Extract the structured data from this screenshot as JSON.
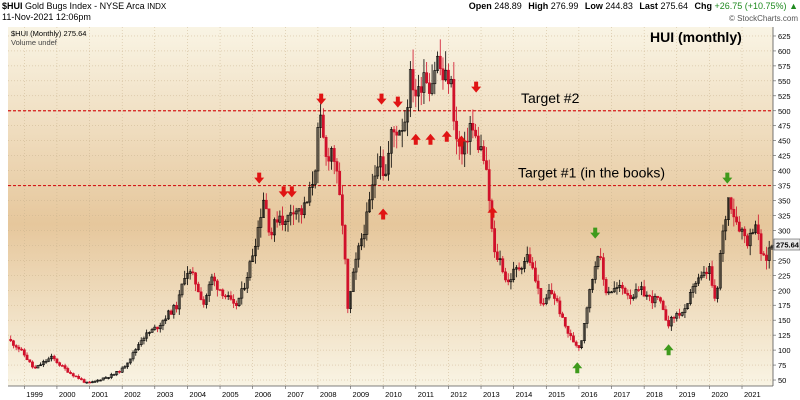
{
  "header": {
    "symbol": "$HUI",
    "name": "Gold Bugs Index - NYSE Arca",
    "exchange": "INDX",
    "date": "11-Nov-2021 12:06pm",
    "open_label": "Open",
    "open": "248.89",
    "high_label": "High",
    "high": "276.99",
    "low_label": "Low",
    "low": "244.83",
    "last_label": "Last",
    "last": "275.64",
    "chg_label": "Chg",
    "chg": "+26.75 (+10.75%)",
    "chg_symbol": "▲",
    "credit": "© StockCharts.com"
  },
  "legend": {
    "series_label": "$HUI (Monthly) 275.64",
    "volume_label": "Volume undef"
  },
  "colors": {
    "bg_top": "#f9f4e4",
    "bg_mid": "#e6c79c",
    "bg_bottom": "#f9f4e4",
    "up": "#000000",
    "down": "#d0102a",
    "target_line": "#d41919",
    "arrow_red": "#e01414",
    "arrow_green": "#3f9a1c",
    "last_box": "#e8e8e8"
  },
  "chart_data": {
    "type": "candlestick",
    "title": "HUI (monthly)",
    "ylim": [
      40,
      640
    ],
    "yticks": [
      50,
      75,
      100,
      125,
      150,
      175,
      200,
      225,
      250,
      275,
      300,
      325,
      350,
      375,
      400,
      425,
      450,
      475,
      500,
      525,
      550,
      575,
      600,
      625
    ],
    "xlim": [
      1998.5,
      2021.95
    ],
    "xticks": [
      1999,
      2000,
      2001,
      2002,
      2003,
      2004,
      2005,
      2006,
      2007,
      2008,
      2009,
      2010,
      2011,
      2012,
      2013,
      2014,
      2015,
      2016,
      2017,
      2018,
      2019,
      2020,
      2021
    ],
    "last_value": 275.64,
    "last_value_label": "275.64",
    "grid": true,
    "series": [
      {
        "name": "$HUI",
        "close_path": [
          [
            1998.5,
            118
          ],
          [
            1998.8,
            105
          ],
          [
            1999.0,
            92
          ],
          [
            1999.3,
            68
          ],
          [
            1999.6,
            80
          ],
          [
            1999.85,
            88
          ],
          [
            2000.1,
            75
          ],
          [
            2000.4,
            62
          ],
          [
            2000.7,
            52
          ],
          [
            2000.9,
            45
          ],
          [
            2001.1,
            46
          ],
          [
            2001.4,
            53
          ],
          [
            2001.7,
            58
          ],
          [
            2002.0,
            68
          ],
          [
            2002.35,
            95
          ],
          [
            2002.6,
            120
          ],
          [
            2002.85,
            130
          ],
          [
            2003.1,
            140
          ],
          [
            2003.4,
            160
          ],
          [
            2003.7,
            175
          ],
          [
            2003.95,
            235
          ],
          [
            2004.2,
            220
          ],
          [
            2004.5,
            178
          ],
          [
            2004.75,
            220
          ],
          [
            2004.95,
            205
          ],
          [
            2005.2,
            190
          ],
          [
            2005.45,
            170
          ],
          [
            2005.7,
            200
          ],
          [
            2005.95,
            250
          ],
          [
            2006.15,
            300
          ],
          [
            2006.35,
            360
          ],
          [
            2006.55,
            290
          ],
          [
            2006.8,
            330
          ],
          [
            2007.0,
            310
          ],
          [
            2007.2,
            340
          ],
          [
            2007.5,
            330
          ],
          [
            2007.7,
            350
          ],
          [
            2007.9,
            400
          ],
          [
            2008.05,
            490
          ],
          [
            2008.25,
            420
          ],
          [
            2008.45,
            440
          ],
          [
            2008.65,
            360
          ],
          [
            2008.8,
            290
          ],
          [
            2008.9,
            160
          ],
          [
            2009.1,
            230
          ],
          [
            2009.3,
            280
          ],
          [
            2009.5,
            320
          ],
          [
            2009.7,
            380
          ],
          [
            2009.9,
            440
          ],
          [
            2010.05,
            380
          ],
          [
            2010.25,
            460
          ],
          [
            2010.45,
            470
          ],
          [
            2010.65,
            480
          ],
          [
            2010.85,
            560
          ],
          [
            2011.05,
            520
          ],
          [
            2011.25,
            570
          ],
          [
            2011.45,
            540
          ],
          [
            2011.65,
            590
          ],
          [
            2011.85,
            550
          ],
          [
            2012.05,
            560
          ],
          [
            2012.25,
            450
          ],
          [
            2012.45,
            420
          ],
          [
            2012.65,
            480
          ],
          [
            2012.85,
            450
          ],
          [
            2013.05,
            430
          ],
          [
            2013.2,
            380
          ],
          [
            2013.4,
            260
          ],
          [
            2013.6,
            250
          ],
          [
            2013.8,
            210
          ],
          [
            2014.0,
            230
          ],
          [
            2014.2,
            240
          ],
          [
            2014.45,
            260
          ],
          [
            2014.7,
            210
          ],
          [
            2014.9,
            170
          ],
          [
            2015.1,
            200
          ],
          [
            2015.3,
            185
          ],
          [
            2015.5,
            150
          ],
          [
            2015.7,
            125
          ],
          [
            2015.9,
            110
          ],
          [
            2016.05,
            105
          ],
          [
            2016.2,
            160
          ],
          [
            2016.45,
            230
          ],
          [
            2016.6,
            270
          ],
          [
            2016.8,
            200
          ],
          [
            2017.0,
            200
          ],
          [
            2017.3,
            205
          ],
          [
            2017.6,
            190
          ],
          [
            2017.9,
            200
          ],
          [
            2018.2,
            185
          ],
          [
            2018.45,
            185
          ],
          [
            2018.6,
            160
          ],
          [
            2018.75,
            145
          ],
          [
            2019.0,
            160
          ],
          [
            2019.3,
            165
          ],
          [
            2019.5,
            210
          ],
          [
            2019.75,
            220
          ],
          [
            2020.0,
            235
          ],
          [
            2020.2,
            170
          ],
          [
            2020.35,
            270
          ],
          [
            2020.6,
            360
          ],
          [
            2020.8,
            320
          ],
          [
            2021.0,
            300
          ],
          [
            2021.2,
            280
          ],
          [
            2021.4,
            320
          ],
          [
            2021.55,
            270
          ],
          [
            2021.7,
            245
          ],
          [
            2021.87,
            275.64
          ]
        ]
      }
    ],
    "annotations": [
      {
        "type": "hline",
        "y": 500,
        "label": "Target #2"
      },
      {
        "type": "hline",
        "y": 375,
        "label": "Target #1 (in the books)"
      }
    ],
    "markers": [
      {
        "x": 2006.2,
        "y": 385,
        "dir": "down",
        "color": "red"
      },
      {
        "x": 2006.95,
        "y": 362,
        "dir": "down",
        "color": "red"
      },
      {
        "x": 2007.2,
        "y": 362,
        "dir": "down",
        "color": "red"
      },
      {
        "x": 2008.1,
        "y": 517,
        "dir": "down",
        "color": "red"
      },
      {
        "x": 2009.95,
        "y": 517,
        "dir": "down",
        "color": "red"
      },
      {
        "x": 2010.45,
        "y": 512,
        "dir": "down",
        "color": "red"
      },
      {
        "x": 2012.85,
        "y": 537,
        "dir": "down",
        "color": "red"
      },
      {
        "x": 2010.0,
        "y": 330,
        "dir": "up",
        "color": "red"
      },
      {
        "x": 2011.0,
        "y": 455,
        "dir": "up",
        "color": "red"
      },
      {
        "x": 2011.45,
        "y": 455,
        "dir": "up",
        "color": "red"
      },
      {
        "x": 2011.95,
        "y": 460,
        "dir": "up",
        "color": "red"
      },
      {
        "x": 2012.4,
        "y": 452,
        "dir": "up",
        "color": "red"
      },
      {
        "x": 2013.35,
        "y": 333,
        "dir": "up",
        "color": "red"
      },
      {
        "x": 2016.5,
        "y": 293,
        "dir": "down",
        "color": "green"
      },
      {
        "x": 2020.55,
        "y": 385,
        "dir": "down",
        "color": "green"
      },
      {
        "x": 2015.95,
        "y": 73,
        "dir": "up",
        "color": "green"
      },
      {
        "x": 2018.75,
        "y": 103,
        "dir": "up",
        "color": "green"
      }
    ]
  }
}
